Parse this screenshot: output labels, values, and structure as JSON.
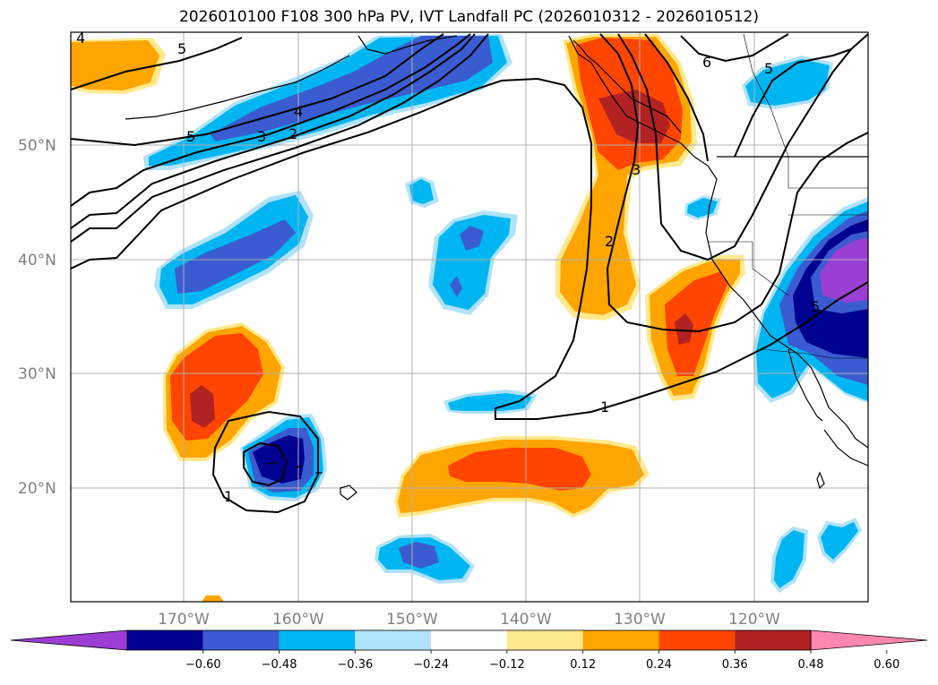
{
  "title": "2026010100 F108 300 hPa PV, IVT Landfall PC (2026010312 - 2026010512)",
  "map": {
    "lat_labels": [
      "50°N",
      "40°N",
      "30°N",
      "20°N"
    ],
    "lon_labels": [
      "170°W",
      "160°W",
      "150°W",
      "140°W",
      "130°W",
      "120°W"
    ],
    "contour_labels": [
      "5",
      "4",
      "3",
      "2",
      "5",
      "6",
      "5",
      "3",
      "2",
      "1",
      "1",
      "4",
      "5"
    ]
  },
  "colorbar": {
    "tick_labels": [
      "−0.60",
      "−0.48",
      "−0.36",
      "−0.24",
      "−0.12",
      "0.12",
      "0.24",
      "0.36",
      "0.48",
      "0.60"
    ],
    "colors": [
      "#9b3fd4",
      "#000090",
      "#3a5cd0",
      "#00b6f2",
      "#b0e2fa",
      "#ffffff",
      "#ffe98c",
      "#ffa500",
      "#ff4500",
      "#b22222",
      "#ff86b0"
    ]
  },
  "colors": {
    "dark_blue": "#000090",
    "blue": "#3a5cd0",
    "light_blue": "#00b6f2",
    "pale_blue": "#b0e2fa",
    "yellow": "#ffe98c",
    "orange": "#ffa500",
    "red_orange": "#ff4500",
    "dark_red": "#b22222",
    "purple": "#9b3fd4"
  }
}
